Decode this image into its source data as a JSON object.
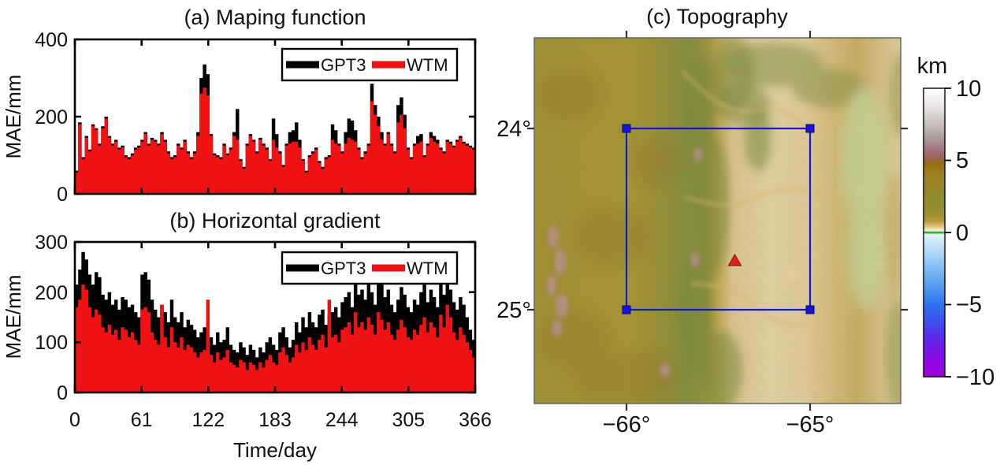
{
  "chart_data": [
    {
      "type": "bar",
      "id": "a",
      "title": "(a) Maping function",
      "ylabel": "MAE/mm",
      "ylim": [
        0,
        400
      ],
      "yticks": [
        0,
        200,
        400
      ],
      "xlim": [
        0,
        366
      ],
      "xticks": [
        0,
        61,
        122,
        183,
        244,
        305,
        366
      ],
      "x_step_days": 3,
      "grid": false,
      "legend_position": "upper-right",
      "series": [
        {
          "name": "GPT3",
          "color": "#000000",
          "values": [
            60,
            185,
            95,
            150,
            115,
            180,
            170,
            130,
            175,
            200,
            150,
            130,
            140,
            120,
            125,
            100,
            95,
            105,
            120,
            125,
            140,
            160,
            130,
            145,
            140,
            130,
            160,
            140,
            110,
            95,
            100,
            130,
            120,
            140,
            110,
            95,
            110,
            160,
            300,
            335,
            310,
            155,
            105,
            100,
            95,
            130,
            105,
            120,
            160,
            220,
            90,
            70,
            130,
            155,
            140,
            110,
            145,
            130,
            120,
            90,
            195,
            155,
            110,
            75,
            130,
            160,
            165,
            185,
            140,
            90,
            60,
            100,
            110,
            120,
            85,
            70,
            95,
            100,
            180,
            165,
            130,
            110,
            160,
            195,
            190,
            165,
            120,
            95,
            110,
            130,
            285,
            230,
            200,
            160,
            130,
            160,
            130,
            110,
            230,
            250,
            205,
            120,
            95,
            130,
            150,
            155,
            100,
            130,
            160,
            150,
            140,
            120,
            110,
            140,
            135,
            125,
            140,
            150,
            135,
            130,
            125,
            120
          ]
        },
        {
          "name": "WTM",
          "color": "#f01212",
          "values": [
            55,
            180,
            90,
            145,
            110,
            175,
            165,
            125,
            170,
            195,
            145,
            125,
            135,
            115,
            120,
            95,
            90,
            100,
            115,
            120,
            135,
            155,
            125,
            140,
            135,
            125,
            155,
            135,
            105,
            90,
            95,
            125,
            115,
            135,
            105,
            90,
            105,
            150,
            260,
            275,
            255,
            150,
            100,
            95,
            90,
            125,
            100,
            115,
            150,
            140,
            85,
            65,
            125,
            150,
            135,
            105,
            140,
            125,
            115,
            85,
            140,
            120,
            105,
            70,
            125,
            130,
            135,
            135,
            120,
            85,
            55,
            95,
            105,
            115,
            80,
            65,
            90,
            95,
            140,
            130,
            125,
            105,
            130,
            145,
            140,
            135,
            115,
            90,
            105,
            125,
            240,
            205,
            175,
            140,
            125,
            155,
            125,
            105,
            185,
            205,
            170,
            115,
            90,
            125,
            130,
            135,
            95,
            125,
            145,
            135,
            130,
            115,
            105,
            135,
            130,
            120,
            135,
            145,
            130,
            125,
            120,
            115
          ]
        }
      ]
    },
    {
      "type": "bar",
      "id": "b",
      "title": "(b) Horizontal gradient",
      "ylabel": "MAE/mm",
      "xlabel": "Time/day",
      "ylim": [
        0,
        300
      ],
      "yticks": [
        0,
        100,
        200,
        300
      ],
      "xlim": [
        0,
        366
      ],
      "xticks": [
        0,
        61,
        122,
        183,
        244,
        305,
        366
      ],
      "x_step_days": 3,
      "grid": false,
      "legend_position": "upper-right",
      "series": [
        {
          "name": "GPT3",
          "color": "#000000",
          "values": [
            215,
            245,
            280,
            265,
            235,
            215,
            240,
            230,
            195,
            185,
            200,
            175,
            185,
            165,
            190,
            185,
            170,
            175,
            160,
            150,
            235,
            240,
            225,
            185,
            165,
            150,
            175,
            160,
            140,
            185,
            150,
            140,
            160,
            130,
            145,
            135,
            125,
            110,
            120,
            130,
            140,
            110,
            95,
            120,
            100,
            105,
            130,
            95,
            85,
            80,
            100,
            90,
            75,
            95,
            85,
            70,
            90,
            80,
            100,
            110,
            95,
            85,
            120,
            130,
            110,
            90,
            105,
            140,
            120,
            150,
            130,
            160,
            140,
            130,
            155,
            165,
            135,
            155,
            160,
            170,
            150,
            180,
            190,
            200,
            170,
            230,
            195,
            205,
            185,
            215,
            200,
            175,
            230,
            215,
            190,
            205,
            175,
            160,
            185,
            210,
            195,
            170,
            160,
            185,
            175,
            200,
            215,
            180,
            205,
            190,
            170,
            220,
            195,
            230,
            205,
            180,
            165,
            190,
            175,
            150,
            125,
            105
          ]
        },
        {
          "name": "WTM",
          "color": "#f01212",
          "values": [
            170,
            185,
            215,
            205,
            170,
            150,
            165,
            155,
            130,
            120,
            135,
            115,
            125,
            105,
            130,
            125,
            110,
            120,
            105,
            95,
            165,
            170,
            160,
            120,
            105,
            95,
            175,
            110,
            90,
            130,
            100,
            90,
            110,
            85,
            95,
            90,
            80,
            70,
            80,
            85,
            185,
            75,
            60,
            80,
            65,
            70,
            85,
            60,
            55,
            50,
            65,
            60,
            45,
            60,
            55,
            45,
            60,
            50,
            65,
            75,
            60,
            55,
            80,
            90,
            75,
            60,
            70,
            95,
            80,
            100,
            85,
            110,
            95,
            85,
            105,
            115,
            90,
            185,
            110,
            115,
            100,
            125,
            130,
            140,
            115,
            160,
            130,
            140,
            125,
            150,
            135,
            115,
            160,
            145,
            125,
            140,
            115,
            105,
            125,
            145,
            130,
            110,
            105,
            125,
            115,
            135,
            150,
            120,
            140,
            130,
            110,
            155,
            130,
            175,
            150,
            120,
            105,
            130,
            115,
            100,
            85,
            70
          ]
        }
      ]
    },
    {
      "type": "map",
      "id": "c",
      "title": "(c) Topography",
      "lat_ticks": [
        {
          "label": "−24°",
          "value": -24
        },
        {
          "label": "−25°",
          "value": -25
        }
      ],
      "lon_ticks": [
        {
          "label": "−66°",
          "value": -66
        },
        {
          "label": "−65°",
          "value": -65
        }
      ],
      "colorbar": {
        "label": "km",
        "range": [
          -10,
          10
        ],
        "ticks": [
          {
            "label": "10",
            "value": 10
          },
          {
            "label": "5",
            "value": 5
          },
          {
            "label": "0",
            "value": 0
          },
          {
            "label": "−5",
            "value": -5
          },
          {
            "label": "−10",
            "value": -10
          }
        ],
        "gradient": [
          {
            "off": 0.0,
            "color": "#ffffff"
          },
          {
            "off": 0.05,
            "color": "#f0edec"
          },
          {
            "off": 0.1,
            "color": "#d5cfcd"
          },
          {
            "off": 0.16,
            "color": "#b3a7a6"
          },
          {
            "off": 0.2,
            "color": "#a68084"
          },
          {
            "off": 0.23,
            "color": "#9d6670"
          },
          {
            "off": 0.26,
            "color": "#966a16"
          },
          {
            "off": 0.3,
            "color": "#9d7f1f"
          },
          {
            "off": 0.35,
            "color": "#97882a"
          },
          {
            "off": 0.4,
            "color": "#8f8c33"
          },
          {
            "off": 0.44,
            "color": "#9b9030"
          },
          {
            "off": 0.46,
            "color": "#b89a3d"
          },
          {
            "off": 0.475,
            "color": "#d9b96f"
          },
          {
            "off": 0.485,
            "color": "#eed3a2"
          },
          {
            "off": 0.492,
            "color": "#f9ecd0"
          },
          {
            "off": 0.496,
            "color": "#cfe9b4"
          },
          {
            "off": 0.498,
            "color": "#28b828"
          },
          {
            "off": 0.502,
            "color": "#28b828"
          },
          {
            "off": 0.506,
            "color": "#eaf5fd"
          },
          {
            "off": 0.53,
            "color": "#cfe7fb"
          },
          {
            "off": 0.58,
            "color": "#a6d2f7"
          },
          {
            "off": 0.64,
            "color": "#76b4f2"
          },
          {
            "off": 0.7,
            "color": "#4b94ee"
          },
          {
            "off": 0.75,
            "color": "#2f72ec"
          },
          {
            "off": 0.8,
            "color": "#3a55ec"
          },
          {
            "off": 0.85,
            "color": "#5532ea"
          },
          {
            "off": 0.9,
            "color": "#7518e8"
          },
          {
            "off": 0.96,
            "color": "#9304e0"
          },
          {
            "off": 1.0,
            "color": "#9d00d8"
          }
        ]
      },
      "terrain_gradient": [
        {
          "off": 0.0,
          "color": "#9f8e2b"
        },
        {
          "off": 0.26,
          "color": "#a8942c"
        },
        {
          "off": 0.34,
          "color": "#978c2f"
        },
        {
          "off": 0.42,
          "color": "#7f8c3d"
        },
        {
          "off": 0.47,
          "color": "#98913a"
        },
        {
          "off": 0.5,
          "color": "#c9a952"
        },
        {
          "off": 0.54,
          "color": "#ecd0a0"
        },
        {
          "off": 0.64,
          "color": "#f5e0ba"
        },
        {
          "off": 0.74,
          "color": "#f2d9ad"
        },
        {
          "off": 0.82,
          "color": "#e2c183"
        },
        {
          "off": 0.88,
          "color": "#d4b369"
        },
        {
          "off": 1.0,
          "color": "#f0d9b2"
        }
      ],
      "overlays": {
        "study_square": {
          "lon_min": -66,
          "lon_max": -65,
          "lat_min": -25,
          "lat_max": -24,
          "color": "#1616d6"
        },
        "station_triangle": {
          "lon": -65.41,
          "lat": -24.73,
          "fill": "#e02020",
          "stroke": "#8b1a10"
        }
      }
    }
  ]
}
